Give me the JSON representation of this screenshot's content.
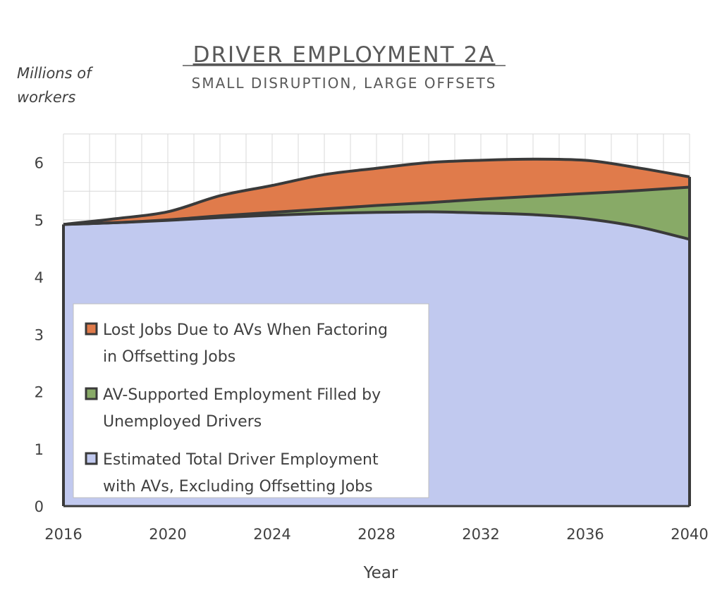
{
  "chart_data": {
    "type": "area",
    "title": "DRIVER EMPLOYMENT 2A",
    "subtitle": "SMALL DISRUPTION, LARGE OFFSETS",
    "ylabel_lines": [
      "Millions of",
      "workers"
    ],
    "xlabel": "Year",
    "xlim": [
      2016,
      2040
    ],
    "ylim": [
      0,
      6.5
    ],
    "x_ticks": [
      "2016",
      "2020",
      "2024",
      "2028",
      "2032",
      "2036",
      "2040"
    ],
    "y_ticks": [
      "0",
      "1",
      "2",
      "3",
      "4",
      "5",
      "6"
    ],
    "grid": true,
    "stacked": true,
    "legend_position": "center-left",
    "x": [
      2016,
      2018,
      2020,
      2022,
      2024,
      2026,
      2028,
      2030,
      2032,
      2034,
      2036,
      2038,
      2040
    ],
    "series": [
      {
        "name": "Estimated Total Driver Employment with AVs, Excluding Offsetting Jobs",
        "legend_lines": [
          "Estimated Total Driver Employment",
          "with AVs, Excluding Offsetting Jobs"
        ],
        "color": "#c1c9ef",
        "values": [
          4.92,
          4.95,
          4.99,
          5.04,
          5.08,
          5.11,
          5.13,
          5.14,
          5.12,
          5.09,
          5.02,
          4.88,
          4.66
        ]
      },
      {
        "name": "AV-Supported Employment Filled by Unemployed Drivers",
        "legend_lines": [
          "AV-Supported Employment Filled by",
          "Unemployed Drivers"
        ],
        "color": "#88aa67",
        "values": [
          0.0,
          0.0,
          0.01,
          0.03,
          0.05,
          0.08,
          0.12,
          0.16,
          0.24,
          0.32,
          0.44,
          0.63,
          0.91
        ]
      },
      {
        "name": "Lost Jobs Due to AVs When Factoring in Offsetting Jobs",
        "legend_lines": [
          "Lost Jobs Due to AVs When Factoring",
          "in Offsetting Jobs"
        ],
        "color": "#e07b4b",
        "values": [
          0.0,
          0.07,
          0.14,
          0.35,
          0.47,
          0.6,
          0.65,
          0.7,
          0.68,
          0.65,
          0.58,
          0.4,
          0.18
        ]
      }
    ]
  }
}
